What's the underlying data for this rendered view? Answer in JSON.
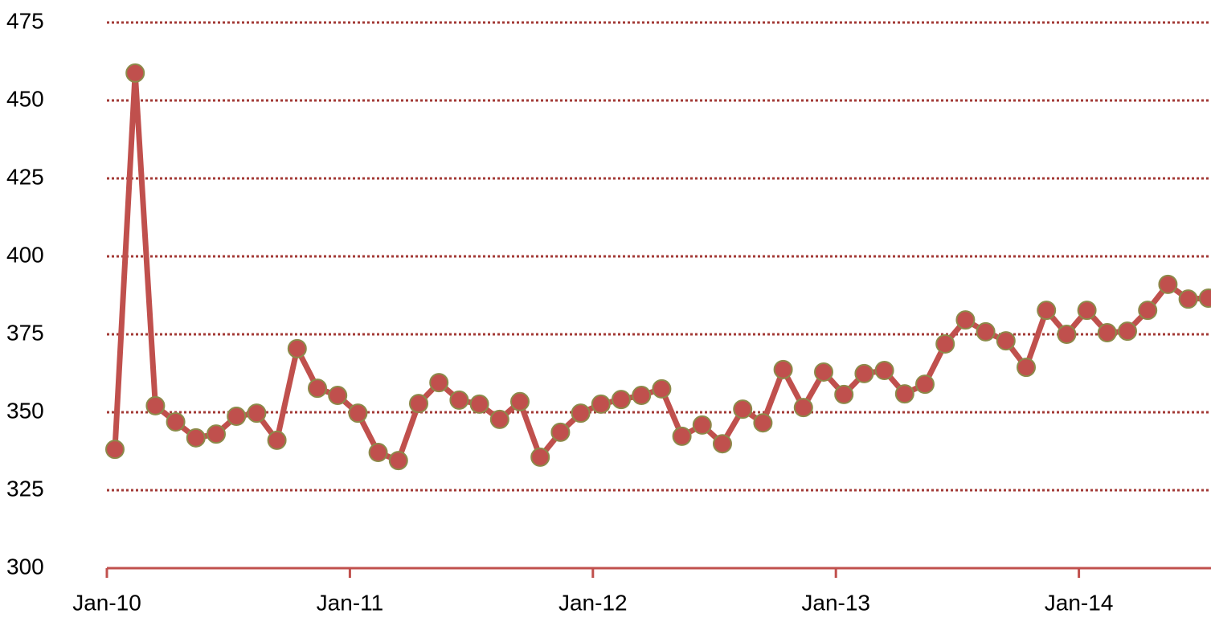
{
  "chart_data": {
    "type": "line",
    "categories": [
      "Jan-10",
      null,
      null,
      null,
      null,
      null,
      null,
      null,
      null,
      null,
      null,
      null,
      "Jan-11",
      null,
      null,
      null,
      null,
      null,
      null,
      null,
      null,
      null,
      null,
      null,
      "Jan-12",
      null,
      null,
      null,
      null,
      null,
      null,
      null,
      null,
      null,
      null,
      null,
      "Jan-13",
      null,
      null,
      null,
      null,
      null,
      null,
      null,
      null,
      null,
      null,
      null,
      "Jan-14",
      null,
      null,
      null,
      null,
      null,
      null
    ],
    "series": [
      {
        "color": "#c0504d",
        "marker_edge": "#8c8a4a",
        "values": [
          338.1,
          458.8,
          352.1,
          346.9,
          341.8,
          343.0,
          348.7,
          349.7,
          341.0,
          370.4,
          357.7,
          355.4,
          349.7,
          337.1,
          334.5,
          352.8,
          359.5,
          353.9,
          352.6,
          347.7,
          353.4,
          335.6,
          343.6,
          349.7,
          352.6,
          354.1,
          355.4,
          357.5,
          342.3,
          345.9,
          339.9,
          351.0,
          346.6,
          363.7,
          351.5,
          362.9,
          355.7,
          362.4,
          363.4,
          355.9,
          359.0,
          371.9,
          379.6,
          375.8,
          372.9,
          364.4,
          382.7,
          375.0,
          382.7,
          375.5,
          376.0,
          382.7,
          391.0,
          386.3,
          386.6
        ]
      }
    ],
    "ylim": [
      300,
      475
    ],
    "yticks": [
      300,
      325,
      350,
      375,
      400,
      425,
      450,
      475
    ],
    "grid": true,
    "grid_color": "#a33a36",
    "axis_color": "#c0504d"
  }
}
